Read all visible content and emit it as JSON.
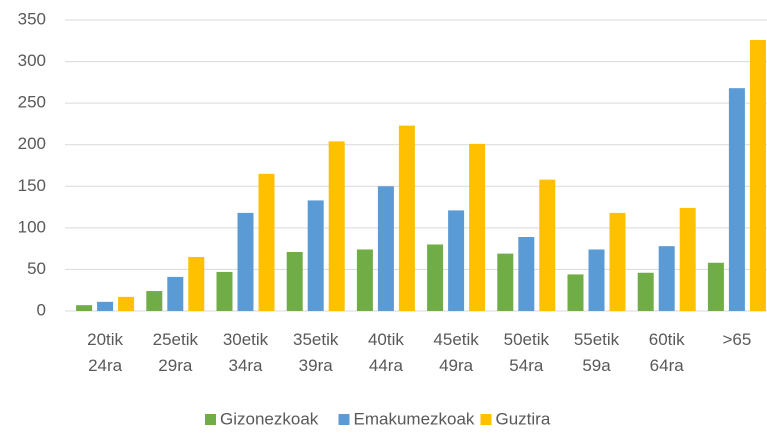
{
  "chart_data": {
    "type": "bar",
    "categories": [
      [
        "20tik",
        "24ra"
      ],
      [
        "25etik",
        "29ra"
      ],
      [
        "30etik",
        "34ra"
      ],
      [
        "35etik",
        "39ra"
      ],
      [
        "40tik",
        "44ra"
      ],
      [
        "45etik",
        "49ra"
      ],
      [
        "50etik",
        "54ra"
      ],
      [
        "55etik",
        "59a"
      ],
      [
        "60tik",
        "64ra"
      ],
      [
        ">65"
      ]
    ],
    "series": [
      {
        "name": "Gizonezkoak",
        "color": "#70ad47",
        "values": [
          7,
          24,
          47,
          71,
          74,
          80,
          69,
          44,
          46,
          58
        ]
      },
      {
        "name": "Emakumezkoak",
        "color": "#5b9bd5",
        "values": [
          11,
          41,
          118,
          133,
          150,
          121,
          89,
          74,
          78,
          268
        ]
      },
      {
        "name": "Guztira",
        "color": "#ffc000",
        "values": [
          17,
          65,
          165,
          204,
          223,
          201,
          158,
          118,
          124,
          326
        ]
      }
    ],
    "ylim": [
      0,
      350
    ],
    "yticks": [
      0,
      50,
      100,
      150,
      200,
      250,
      300,
      350
    ],
    "grid": true,
    "legend": "bottom"
  }
}
